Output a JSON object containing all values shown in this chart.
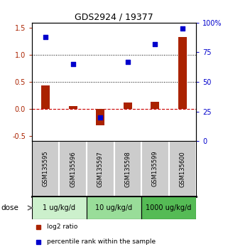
{
  "title": "GDS2924 / 19377",
  "samples": [
    "GSM135595",
    "GSM135596",
    "GSM135597",
    "GSM135598",
    "GSM135599",
    "GSM135600"
  ],
  "log2_ratio": [
    0.43,
    0.05,
    -0.3,
    0.12,
    0.13,
    1.33
  ],
  "percentile_rank": [
    88,
    65,
    20,
    67,
    82,
    95
  ],
  "dose_groups": [
    {
      "label": "1 ug/kg/d",
      "samples": [
        0,
        1
      ],
      "color": "#ccf0cc"
    },
    {
      "label": "10 ug/kg/d",
      "samples": [
        2,
        3
      ],
      "color": "#99dd99"
    },
    {
      "label": "1000 ug/kg/d",
      "samples": [
        4,
        5
      ],
      "color": "#55bb55"
    }
  ],
  "bar_color": "#aa2200",
  "dot_color": "#0000cc",
  "ylim_left": [
    -0.6,
    1.6
  ],
  "ylim_right": [
    0,
    100
  ],
  "yticks_left": [
    -0.5,
    0.0,
    0.5,
    1.0,
    1.5
  ],
  "yticks_right": [
    0,
    25,
    50,
    75,
    100
  ],
  "legend_bar_label": "log2 ratio",
  "legend_dot_label": "percentile rank within the sample",
  "dose_label": "dose",
  "sample_bg_color": "#cccccc",
  "sample_bg_color2": "#bbbbbb"
}
